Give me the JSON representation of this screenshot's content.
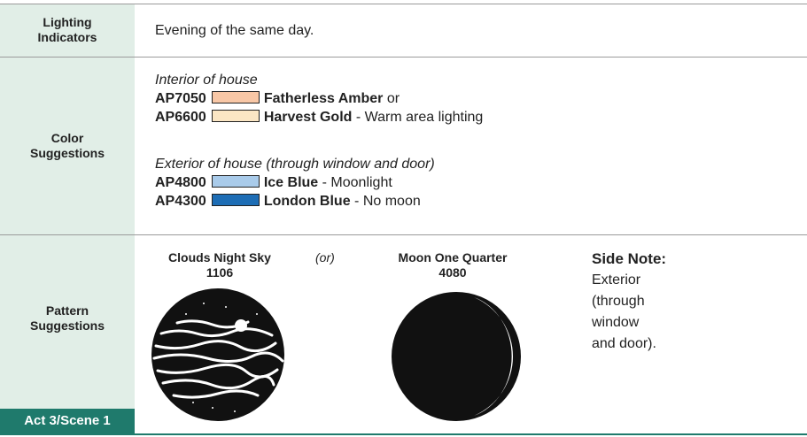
{
  "rows": [
    {
      "label": "Lighting Indicators",
      "text": "Evening of the same day."
    },
    {
      "label": "Color Suggestions",
      "groups": [
        {
          "heading": "Interior of house",
          "items": [
            {
              "code": "AP7050",
              "color": "#f8c7a6",
              "name": "Fatherless Amber",
              "note": "or"
            },
            {
              "code": "AP6600",
              "color": "#fbe6c4",
              "name": "Harvest Gold",
              "note": "- Warm area lighting"
            }
          ]
        },
        {
          "heading": "Exterior of house (through window and door)",
          "items": [
            {
              "code": "AP4800",
              "color": "#a9cbea",
              "name": "Ice Blue",
              "note": "- Moonlight"
            },
            {
              "code": "AP4300",
              "color": "#1d6db5",
              "name": "London Blue",
              "note": "- No moon"
            }
          ]
        }
      ]
    },
    {
      "label": "Pattern Suggestions",
      "patterns": [
        {
          "name": "Clouds Night Sky",
          "number": "1106"
        },
        {
          "name": "Moon One Quarter",
          "number": "4080"
        }
      ],
      "separator": "(or)",
      "side_note": {
        "title": "Side Note:",
        "text": "Exterior (through window and door)."
      }
    }
  ],
  "footer": "Act 3/Scene 1"
}
